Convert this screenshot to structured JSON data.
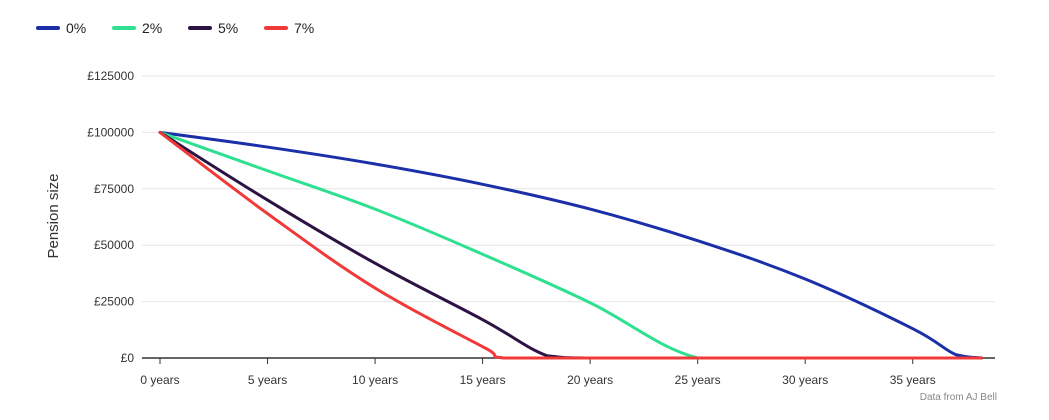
{
  "chart_data": {
    "type": "line",
    "title": "",
    "ylabel": "Pension size",
    "xlabel": "",
    "source": "Data from AJ Bell",
    "legend_position": "top-left",
    "grid": true,
    "xlim": [
      0,
      38.5
    ],
    "ylim": [
      0,
      125000
    ],
    "x_ticks": [
      0,
      5,
      10,
      15,
      20,
      25,
      30,
      35
    ],
    "x_tick_labels": [
      "0 years",
      "5 years",
      "10 years",
      "15 years",
      "20 years",
      "25 years",
      "30 years",
      "35 years"
    ],
    "y_ticks": [
      0,
      25000,
      50000,
      75000,
      100000,
      125000
    ],
    "y_tick_labels": [
      "£0",
      "£25000",
      "£50000",
      "£75000",
      "£100000",
      "£125000"
    ],
    "series": [
      {
        "name": "0%",
        "color": "#1a2fa8",
        "x": [
          0,
          5,
          10,
          15,
          20,
          25,
          30,
          35,
          37,
          38.2
        ],
        "y": [
          100000,
          93500,
          86000,
          77000,
          66000,
          52000,
          35000,
          13000,
          1500,
          0
        ]
      },
      {
        "name": "2%",
        "color": "#2ee08f",
        "x": [
          0,
          5,
          10,
          15,
          20,
          25,
          30,
          35,
          38.2
        ],
        "y": [
          100000,
          83000,
          66000,
          46000,
          24500,
          0,
          0,
          0,
          0
        ]
      },
      {
        "name": "5%",
        "color": "#2b1344",
        "x": [
          0,
          5,
          10,
          15,
          18,
          20,
          25,
          30,
          35,
          38.2
        ],
        "y": [
          100000,
          70000,
          42000,
          17000,
          1000,
          0,
          0,
          0,
          0,
          0
        ]
      },
      {
        "name": "7%",
        "color": "#f03a3a",
        "x": [
          0,
          5,
          10,
          15,
          16,
          20,
          25,
          30,
          35,
          38.2
        ],
        "y": [
          100000,
          64000,
          31000,
          5000,
          0,
          0,
          0,
          0,
          0,
          0
        ]
      }
    ]
  }
}
